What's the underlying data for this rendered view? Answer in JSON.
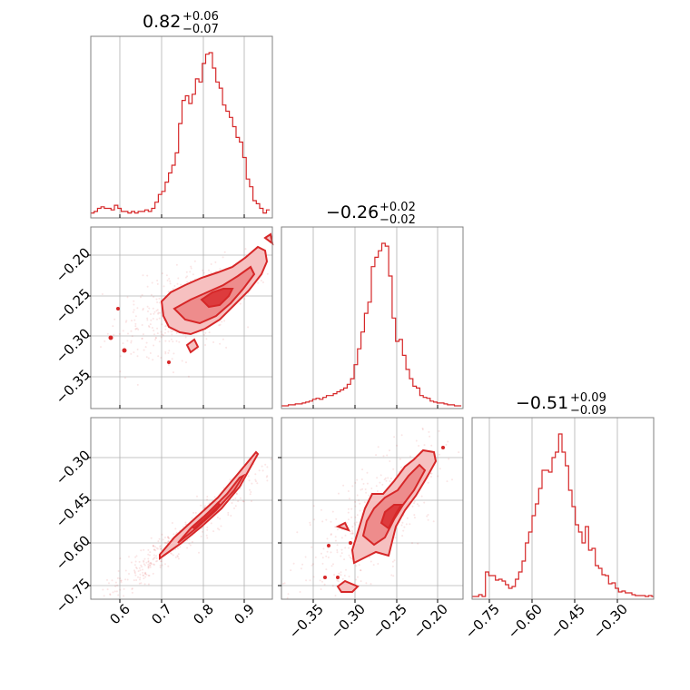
{
  "colors": {
    "accent": "#d62728",
    "fill_light": "#f6c0c0",
    "fill_mid": "#ee8c8c",
    "fill_dark": "#dd3b3d"
  },
  "titles": [
    {
      "value": "0.82",
      "plus": "+0.06",
      "minus": "−0.07"
    },
    {
      "value": "−0.26",
      "plus": "+0.02",
      "minus": "−0.02"
    },
    {
      "value": "−0.51",
      "plus": "+0.09",
      "minus": "−0.09"
    }
  ],
  "ticks": {
    "p0": [
      "0.6",
      "0.7",
      "0.8",
      "0.9"
    ],
    "p1": [
      "−0.35",
      "−0.30",
      "−0.25",
      "−0.20"
    ],
    "p1_y": [
      "−0.20",
      "−0.25",
      "−0.30",
      "−0.35"
    ],
    "p2": [
      "−0.75",
      "−0.60",
      "−0.45",
      "−0.30"
    ],
    "p2_y": [
      "−0.30",
      "−0.45",
      "−0.60",
      "−0.75"
    ]
  },
  "chart_data": {
    "type": "corner",
    "params": [
      {
        "median": 0.82,
        "err_plus": 0.06,
        "err_minus": 0.07,
        "range": [
          0.54,
          0.97
        ]
      },
      {
        "median": -0.26,
        "err_plus": 0.02,
        "err_minus": 0.02,
        "range": [
          -0.385,
          -0.175
        ]
      },
      {
        "median": -0.51,
        "err_plus": 0.09,
        "err_minus": 0.09,
        "range": [
          -0.8,
          -0.2
        ]
      }
    ],
    "hist_p0": {
      "bins": [
        0.54,
        0.548,
        0.556,
        0.564,
        0.572,
        0.58,
        0.588,
        0.596,
        0.604,
        0.612,
        0.62,
        0.628,
        0.636,
        0.644,
        0.652,
        0.66,
        0.668,
        0.676,
        0.684,
        0.692,
        0.7,
        0.708,
        0.716,
        0.724,
        0.732,
        0.74,
        0.748,
        0.756,
        0.764,
        0.772,
        0.78,
        0.788,
        0.796,
        0.804,
        0.812,
        0.82,
        0.828,
        0.836,
        0.844,
        0.852,
        0.86,
        0.868,
        0.876,
        0.884,
        0.892,
        0.9,
        0.908,
        0.916,
        0.924,
        0.932,
        0.94,
        0.948,
        0.956,
        0.964
      ],
      "counts": [
        2,
        3,
        5,
        6,
        5,
        5,
        4,
        7,
        5,
        3,
        3,
        2,
        3,
        2,
        3,
        3,
        4,
        3,
        5,
        9,
        14,
        16,
        22,
        28,
        33,
        41,
        60,
        75,
        78,
        73,
        79,
        89,
        87,
        99,
        105,
        106,
        96,
        87,
        83,
        72,
        68,
        64,
        58,
        51,
        48,
        38,
        24,
        19,
        10,
        8,
        5,
        2,
        4
      ]
    },
    "hist_p1": {
      "bins": [
        -0.385,
        -0.381,
        -0.377,
        -0.373,
        -0.369,
        -0.365,
        -0.361,
        -0.357,
        -0.353,
        -0.349,
        -0.345,
        -0.341,
        -0.337,
        -0.333,
        -0.329,
        -0.325,
        -0.321,
        -0.317,
        -0.313,
        -0.309,
        -0.305,
        -0.301,
        -0.297,
        -0.293,
        -0.289,
        -0.285,
        -0.281,
        -0.277,
        -0.273,
        -0.269,
        -0.265,
        -0.261,
        -0.257,
        -0.253,
        -0.249,
        -0.245,
        -0.241,
        -0.237,
        -0.233,
        -0.229,
        -0.225,
        -0.221,
        -0.217,
        -0.213,
        -0.209,
        -0.205,
        -0.201,
        -0.197,
        -0.193,
        -0.189,
        -0.185,
        -0.181,
        -0.177
      ],
      "counts": [
        1,
        1,
        2,
        2,
        3,
        3,
        4,
        5,
        6,
        8,
        9,
        8,
        10,
        12,
        12,
        14,
        16,
        18,
        20,
        24,
        30,
        45,
        62,
        80,
        100,
        112,
        150,
        160,
        167,
        175,
        172,
        140,
        95,
        70,
        72,
        55,
        40,
        30,
        22,
        20,
        12,
        10,
        9,
        6,
        5,
        4,
        4,
        3,
        2,
        2,
        1,
        1
      ]
    },
    "hist_p2": {
      "bins": [
        -0.8,
        -0.789,
        -0.778,
        -0.767,
        -0.756,
        -0.745,
        -0.734,
        -0.723,
        -0.712,
        -0.701,
        -0.69,
        -0.679,
        -0.668,
        -0.657,
        -0.646,
        -0.635,
        -0.624,
        -0.613,
        -0.602,
        -0.591,
        -0.58,
        -0.569,
        -0.558,
        -0.547,
        -0.536,
        -0.525,
        -0.514,
        -0.503,
        -0.492,
        -0.481,
        -0.47,
        -0.459,
        -0.448,
        -0.437,
        -0.426,
        -0.415,
        -0.404,
        -0.393,
        -0.382,
        -0.371,
        -0.36,
        -0.349,
        -0.338,
        -0.327,
        -0.316,
        -0.305,
        -0.294,
        -0.283,
        -0.272,
        -0.261,
        -0.25,
        -0.239,
        -0.228,
        -0.217,
        -0.206
      ],
      "counts": [
        1,
        1,
        3,
        1,
        28,
        24,
        24,
        19,
        20,
        18,
        14,
        10,
        12,
        20,
        28,
        40,
        60,
        72,
        90,
        103,
        120,
        140,
        140,
        138,
        154,
        160,
        180,
        160,
        145,
        118,
        100,
        80,
        72,
        60,
        78,
        52,
        54,
        35,
        32,
        25,
        24,
        15,
        16,
        10,
        6,
        7,
        5,
        5,
        3,
        2,
        2,
        2,
        1,
        2,
        1
      ]
    },
    "pair_p0_p1": {
      "x": [
        0.78,
        0.82,
        0.86,
        0.9
      ],
      "y": [
        -0.275,
        -0.26,
        -0.245,
        -0.225
      ]
    },
    "pair_p0_p2": {
      "x": [
        0.58,
        0.7,
        0.82,
        0.95
      ],
      "y": [
        -0.79,
        -0.69,
        -0.55,
        -0.3
      ]
    },
    "pair_p1_p2": {
      "x": [
        -0.3,
        -0.26,
        -0.22
      ],
      "y": [
        -0.61,
        -0.51,
        -0.36
      ]
    }
  }
}
